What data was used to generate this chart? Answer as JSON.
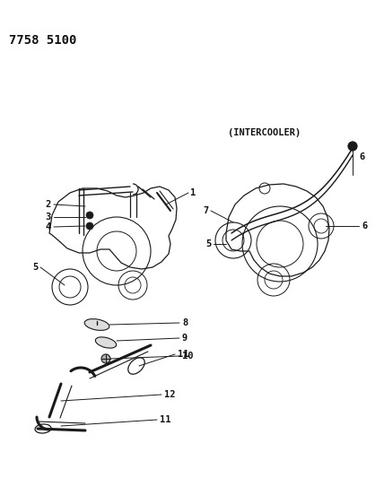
{
  "title": "7758 5100",
  "intercooler_label": "(INTERCOOLER)",
  "bg_color": "#ffffff",
  "line_color": "#1a1a1a",
  "text_color": "#111111",
  "title_fontsize": 10,
  "label_fontsize": 7.5
}
